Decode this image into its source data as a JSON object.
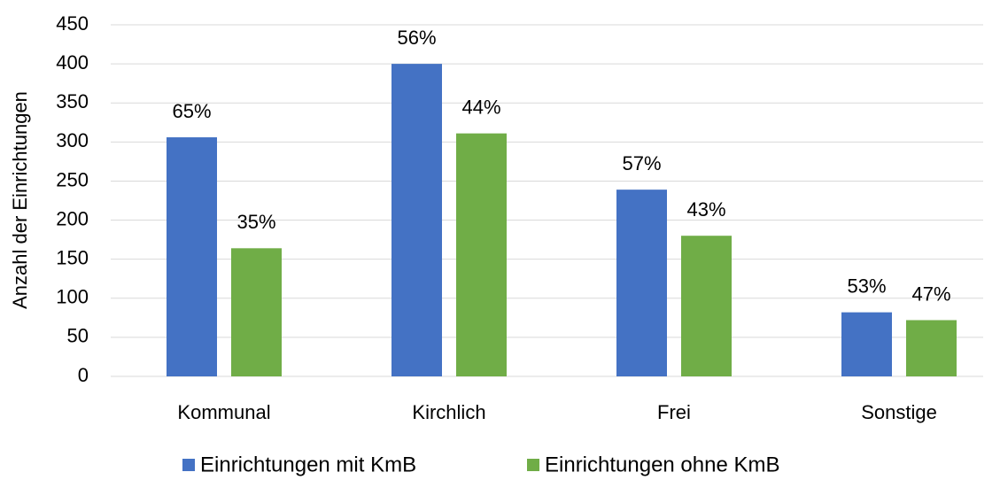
{
  "chart_data": {
    "type": "bar",
    "y_label": "Anzahl der Einrichtungen",
    "categories": [
      "Kommunal",
      "Kirchlich",
      "Frei",
      "Sonstige"
    ],
    "series": [
      {
        "name": "Einrichtungen mit KmB",
        "color": "#4472c4",
        "values": [
          306,
          400,
          239,
          82
        ],
        "share_labels": [
          "65%",
          "56%",
          "57%",
          "53%"
        ]
      },
      {
        "name": "Einrichtungen ohne KmB",
        "color": "#70ad47",
        "values": [
          164,
          311,
          180,
          72
        ],
        "share_labels": [
          "35%",
          "44%",
          "43%",
          "47%"
        ]
      }
    ],
    "ylim": [
      0,
      450
    ],
    "yticks": [
      0,
      50,
      100,
      150,
      200,
      250,
      300,
      350,
      400,
      450
    ],
    "grid": true
  }
}
